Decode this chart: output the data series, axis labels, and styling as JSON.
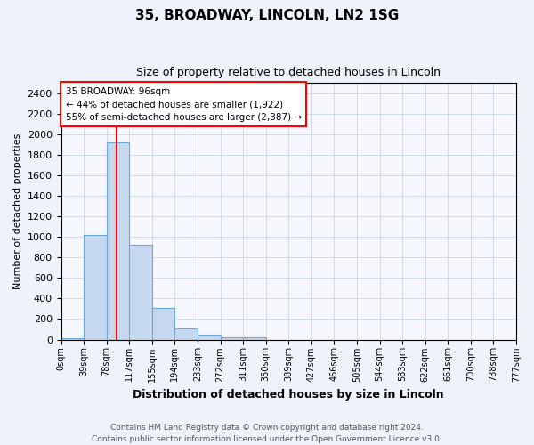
{
  "title1": "35, BROADWAY, LINCOLN, LN2 1SG",
  "title2": "Size of property relative to detached houses in Lincoln",
  "xlabel": "Distribution of detached houses by size in Lincoln",
  "ylabel": "Number of detached properties",
  "bar_color": "#c5d8f0",
  "bar_edge_color": "#6aaad4",
  "bar_heights": [
    15,
    1020,
    1920,
    920,
    310,
    110,
    50,
    25,
    25,
    0,
    0,
    0,
    0,
    0,
    0,
    0,
    0,
    0,
    0,
    0
  ],
  "x_labels": [
    "0sqm",
    "39sqm",
    "78sqm",
    "117sqm",
    "155sqm",
    "194sqm",
    "233sqm",
    "272sqm",
    "311sqm",
    "350sqm",
    "389sqm",
    "427sqm",
    "466sqm",
    "505sqm",
    "544sqm",
    "583sqm",
    "622sqm",
    "661sqm",
    "700sqm",
    "738sqm",
    "777sqm"
  ],
  "ylim": [
    0,
    2500
  ],
  "yticks": [
    0,
    200,
    400,
    600,
    800,
    1000,
    1200,
    1400,
    1600,
    1800,
    2000,
    2200,
    2400
  ],
  "red_line_x": 2.46,
  "annotation_line1": "35 BROADWAY: 96sqm",
  "annotation_line2": "← 44% of detached houses are smaller (1,922)",
  "annotation_line3": "55% of semi-detached houses are larger (2,387) →",
  "footer1": "Contains HM Land Registry data © Crown copyright and database right 2024.",
  "footer2": "Contains public sector information licensed under the Open Government Licence v3.0.",
  "background_color": "#eef2fb",
  "plot_bg_color": "#f5f7fd",
  "grid_color": "#ccd5ea",
  "title1_fontsize": 11,
  "title2_fontsize": 9,
  "ylabel_fontsize": 8,
  "xlabel_fontsize": 9
}
